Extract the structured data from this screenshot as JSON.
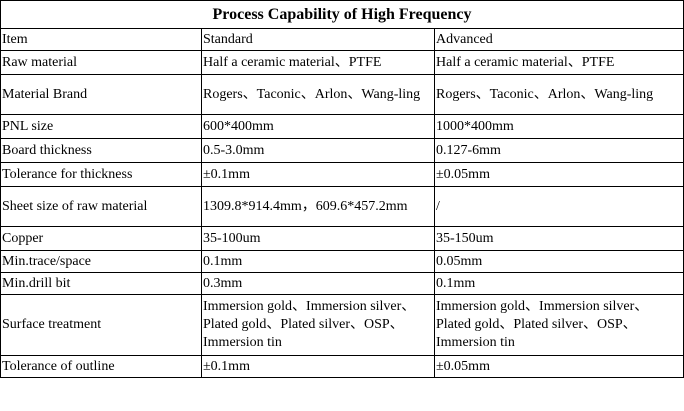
{
  "title": "Process Capability of High Frequency",
  "headers": {
    "item": "Item",
    "standard": "Standard",
    "advanced": "Advanced"
  },
  "rows": [
    {
      "item": "Raw material",
      "standard": "Half a ceramic material、PTFE",
      "advanced": "Half a ceramic material、PTFE"
    },
    {
      "item": "Material Brand",
      "standard": "Rogers、Taconic、Arlon、Wang-ling",
      "advanced": "Rogers、Taconic、Arlon、Wang-ling"
    },
    {
      "item": "PNL size",
      "standard": "600*400mm",
      "advanced": "1000*400mm"
    },
    {
      "item": "Board thickness",
      "standard": "0.5-3.0mm",
      "advanced": "0.127-6mm"
    },
    {
      "item": "Tolerance for thickness",
      "standard": "±0.1mm",
      "advanced": "±0.05mm"
    },
    {
      "item": "Sheet size of raw material",
      "standard": "1309.8*914.4mm，609.6*457.2mm",
      "advanced": "/"
    },
    {
      "item": "Copper",
      "standard": "35-100um",
      "advanced": "35-150um"
    },
    {
      "item": "Min.trace/space",
      "standard": "0.1mm",
      "advanced": "0.05mm"
    },
    {
      "item": "Min.drill bit",
      "standard": "0.3mm",
      "advanced": "0.1mm"
    },
    {
      "item": "Surface treatment",
      "standard": "Immersion gold、Immersion silver、Plated gold、Plated silver、OSP、Immersion tin",
      "advanced": "Immersion gold、Immersion silver、Plated gold、Plated silver、OSP、Immersion tin"
    },
    {
      "item": "Tolerance of outline",
      "standard": "±0.1mm",
      "advanced": "±0.05mm"
    }
  ]
}
